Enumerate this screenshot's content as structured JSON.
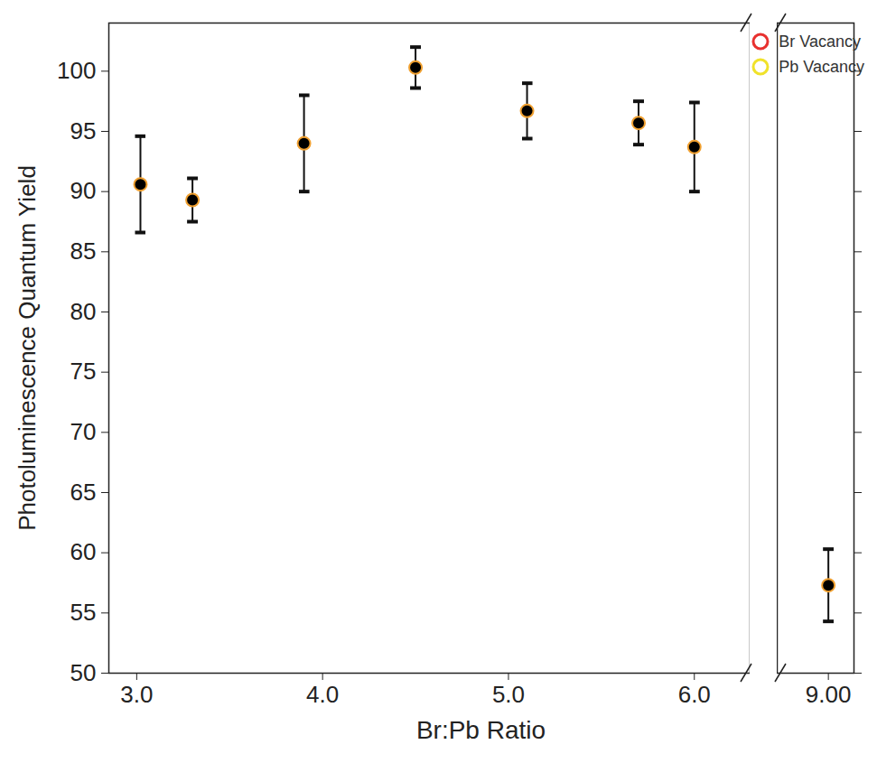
{
  "chart_data": {
    "type": "scatter",
    "x_label": "Br:Pb Ratio",
    "y_label": "Photoluminescence Quantum Yield",
    "x": [
      3.02,
      3.3,
      3.9,
      4.5,
      5.1,
      5.7,
      6.0,
      9.0
    ],
    "values": [
      90.6,
      89.3,
      94.0,
      100.3,
      96.7,
      95.7,
      93.7,
      57.3
    ],
    "errors": [
      4.0,
      1.8,
      4.0,
      1.7,
      2.3,
      1.8,
      3.7,
      3.0
    ],
    "color": "#000000",
    "marker": "circle",
    "xlim": [
      [
        2.85,
        6.3
      ],
      [
        8.7,
        9.15
      ]
    ],
    "xticks": [
      3,
      4,
      5,
      6,
      9
    ],
    "ylim": [
      50,
      104
    ],
    "yticks": [
      50,
      55,
      60,
      65,
      70,
      75,
      80,
      85,
      90,
      95,
      100
    ],
    "legend": "top-right",
    "legend_entries": [
      {
        "name": "Br Vacancy",
        "color": "#e8312f",
        "marker": "circle"
      },
      {
        "name": "Pb Vacancy",
        "color": "#f0e22a",
        "marker": "circle"
      }
    ]
  }
}
